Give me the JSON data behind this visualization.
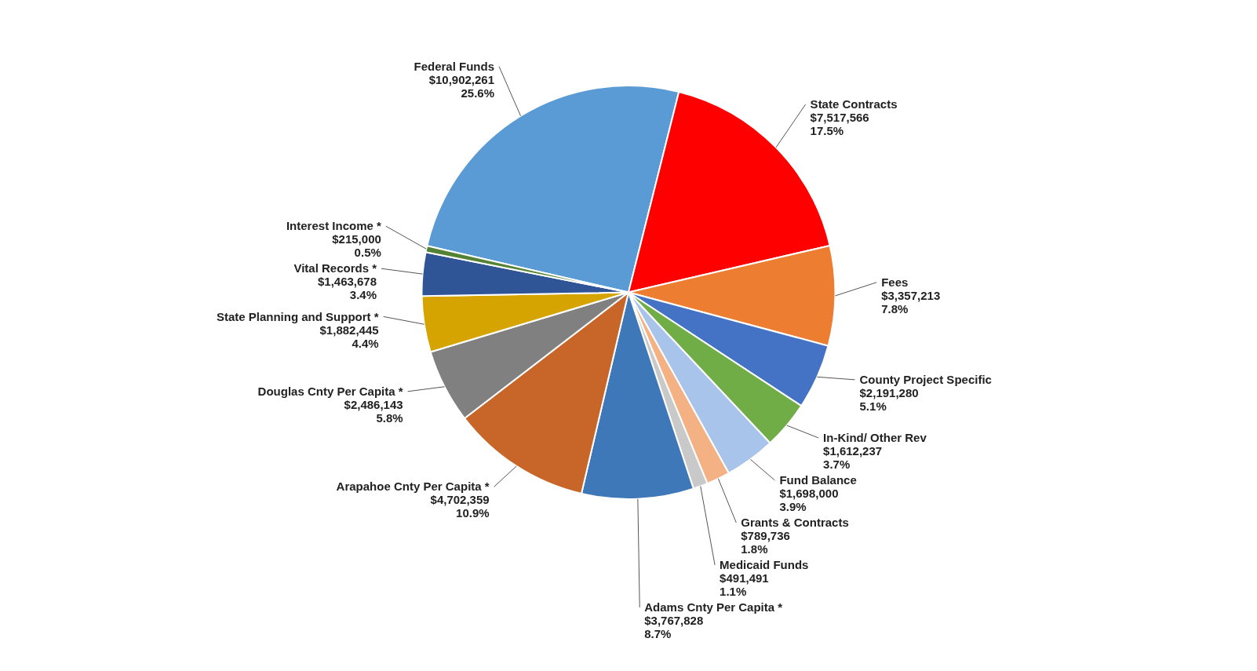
{
  "chart_data": {
    "type": "pie",
    "categories": [
      "Federal Funds",
      "State Contracts",
      "Fees",
      "County Project Specific",
      "In-Kind/ Other Rev",
      "Fund Balance",
      "Grants & Contracts",
      "Medicaid Funds",
      "Adams Cnty Per Capita *",
      "Arapahoe Cnty Per Capita *",
      "Douglas Cnty Per Capita *",
      "State Planning and Support *",
      "Vital Records *",
      "Interest Income *"
    ],
    "values": [
      10902261,
      7517566,
      3357213,
      2191280,
      1612237,
      1698000,
      789736,
      491491,
      3767828,
      4702359,
      2486143,
      1882445,
      1463678,
      215000
    ],
    "value_labels": [
      "$10,902,261\n25.6%",
      "$7,517,566\n17.5%",
      "$3,357,213\n7.8%",
      "$2,191,280\n5.1%",
      "$1,612,237\n3.7%",
      "$1,698,000\n3.9%",
      "$789,736\n1.8%",
      "$491,491\n1.1%",
      "$3,767,828\n8.7%",
      "$4,702,359\n10.9%",
      "$2,486,143\n5.8%",
      "$1,882,445\n4.4%",
      "$1,463,678\n3.4%",
      "$215,000\n0.5%"
    ],
    "colors": [
      "#5b9bd5",
      "#ff0000",
      "#ed7d31",
      "#4472c4",
      "#70ad47",
      "#a9c4eb",
      "#f4b183",
      "#c9c9c9",
      "#3f78b9",
      "#c8662a",
      "#808080",
      "#d6a400",
      "#2f5597",
      "#548235"
    ],
    "legend": false
  }
}
